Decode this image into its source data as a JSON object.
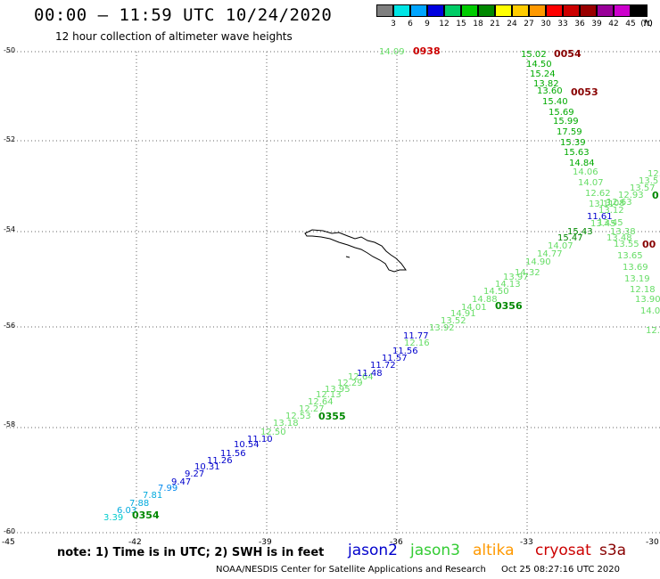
{
  "title": "00:00 – 11:59 UTC 10/24/2020",
  "subtitle": "12 hour collection of altimeter wave heights",
  "color_scale": {
    "labels": [
      "3",
      "6",
      "9",
      "12",
      "15",
      "18",
      "21",
      "24",
      "27",
      "30",
      "33",
      "36",
      "39",
      "42",
      "45",
      "70"
    ],
    "unit": "(ft)",
    "colors": [
      "#7f7f7f",
      "#00e5e5",
      "#00a5ff",
      "#0000e0",
      "#00cc66",
      "#00cc00",
      "#008800",
      "#ffff00",
      "#ffcc00",
      "#ff9900",
      "#ff0000",
      "#cc0000",
      "#990000",
      "#990099",
      "#cc00cc",
      "#000000"
    ]
  },
  "axes": {
    "lat_labels": [
      "-50",
      "-52",
      "-54",
      "-56",
      "-58",
      "-60"
    ],
    "lon_labels": [
      "-45",
      "-42",
      "-39",
      "-36",
      "-33",
      "-30"
    ]
  },
  "colors": {
    "jason2": "#0000cc",
    "jason3": "#33cc33",
    "jason3_dark": "#008800",
    "altika": "#ff9900",
    "cryosat": "#cc0000",
    "s3a": "#880000",
    "light_green": "#66dd66"
  },
  "time_labels": [
    {
      "text": "0938",
      "sat": "cryosat"
    },
    {
      "text": "0054",
      "sat": "s3a"
    },
    {
      "text": "0053",
      "sat": "s3a"
    },
    {
      "text": "0356",
      "sat": "jason3_dark"
    },
    {
      "text": "0355",
      "sat": "jason3_dark"
    },
    {
      "text": "0354",
      "sat": "jason3_dark"
    }
  ],
  "tracks": [
    {
      "id": "a",
      "values": [
        "3.39",
        "6.03",
        "7.88",
        "7.81",
        "7.99",
        "9.47",
        "9.27",
        "10.31",
        "11.26",
        "11.56",
        "10.54",
        "11.10"
      ]
    },
    {
      "id": "b",
      "values": [
        "12.50",
        "13.18",
        "12.53",
        "12.27",
        "12.64",
        "12.13",
        "13.95",
        "12.29",
        "12.64"
      ]
    },
    {
      "id": "c",
      "values": [
        "11.48",
        "11.72",
        "11.57",
        "11.56",
        "11.77"
      ]
    },
    {
      "id": "d",
      "values": [
        "12.16",
        "13.92",
        "13.52",
        "14.91",
        "14.01",
        "14.88",
        "14.50",
        "14.13",
        "13.97",
        "14.32",
        "14.90",
        "14.77",
        "14.07",
        "15.47",
        "15.43",
        "11.61"
      ]
    },
    {
      "id": "e",
      "values": [
        "15.02",
        "14.50",
        "15.24",
        "13.82",
        "13.60",
        "15.40",
        "15.69",
        "15.99",
        "17.59",
        "15.39",
        "15.63",
        "14.84",
        "14.06",
        "14.07",
        "12.62",
        "13.11",
        "13.08",
        "13.45",
        "13.48",
        "13.38",
        "13.55",
        "13.65",
        "13.69",
        "13.19",
        "12.18",
        "13.90",
        "14.0",
        "12."
      ]
    },
    {
      "id": "f",
      "values": [
        "12.",
        "13.5",
        "13.57",
        "12.93",
        "12.63",
        "13.12",
        "13.45"
      ]
    },
    {
      "id": "g",
      "values": [
        "14.09"
      ]
    }
  ],
  "partial_labels": [
    "0",
    "00"
  ],
  "note": "note: 1) Time is in UTC; 2) SWH is in feet",
  "legend": [
    "jason2",
    "jason3",
    "altika",
    "cryosat",
    "s3a"
  ],
  "credit": "NOAA/NESDIS Center for Satellite Applications and Research",
  "timestamp": "Oct 25 08:27:16 UTC 2020"
}
